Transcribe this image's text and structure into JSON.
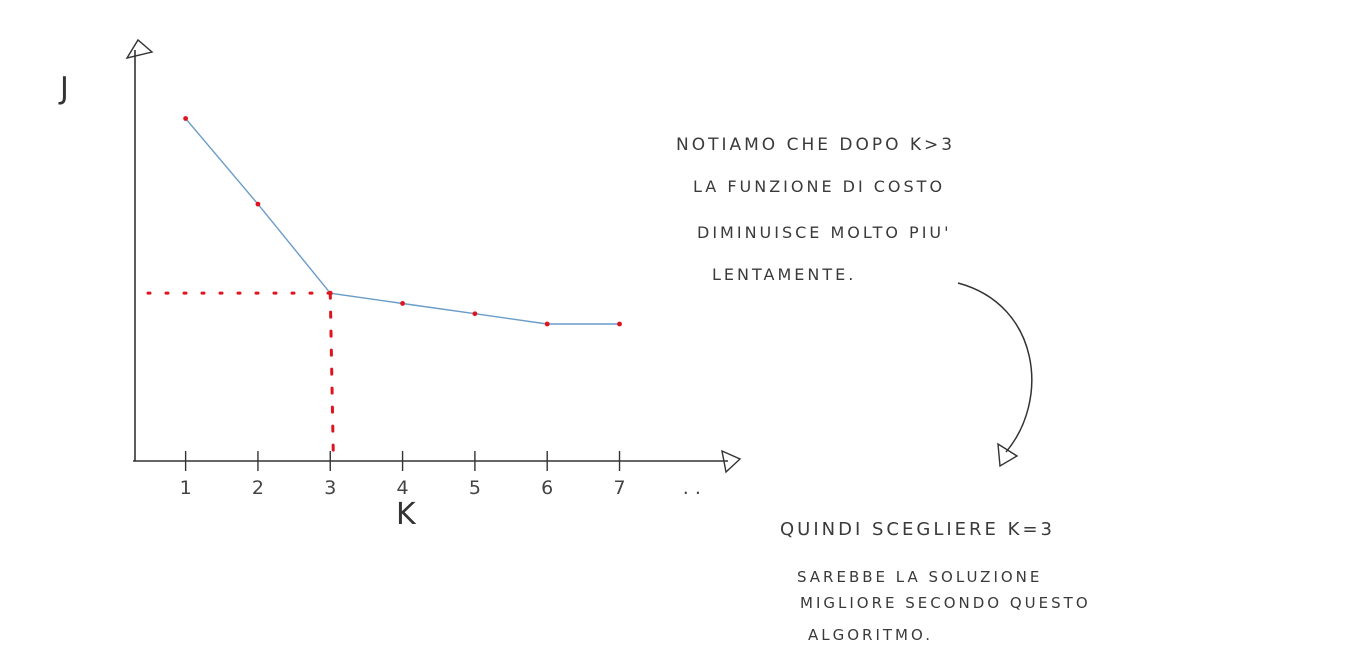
{
  "colors": {
    "series": "#6a9cc8",
    "highlight": "#e0141e",
    "ink": "#333333"
  },
  "notes": {
    "top": [
      "NOTIAMO CHE DOPO K>3",
      "LA FUNZIONE DI COSTO",
      "DIMINUISCE MOLTO PIU'",
      "LENTAMENTE."
    ],
    "bottom": [
      "QUINDI SCEGLIERE K=3",
      "SAREBBE LA SOLUZIONE",
      "MIGLIORE SECONDO QUESTO",
      "ALGORITMO."
    ]
  },
  "chart_data": {
    "type": "line",
    "title": "",
    "xlabel": "K",
    "ylabel": "J",
    "x_tick_labels": [
      "1",
      "2",
      "3",
      "4",
      "5",
      "6",
      "7",
      ". ."
    ],
    "series": [
      {
        "x": [
          1,
          2,
          3,
          4,
          5,
          6,
          7
        ],
        "y": [
          10,
          7.5,
          4.9,
          4.6,
          4.3,
          4.0,
          4.0
        ]
      }
    ],
    "highlight": {
      "x": 3,
      "y": 4.9
    },
    "ylim": [
      0,
      12
    ],
    "xlim": [
      0.3,
      8.5
    ],
    "grid": false
  }
}
